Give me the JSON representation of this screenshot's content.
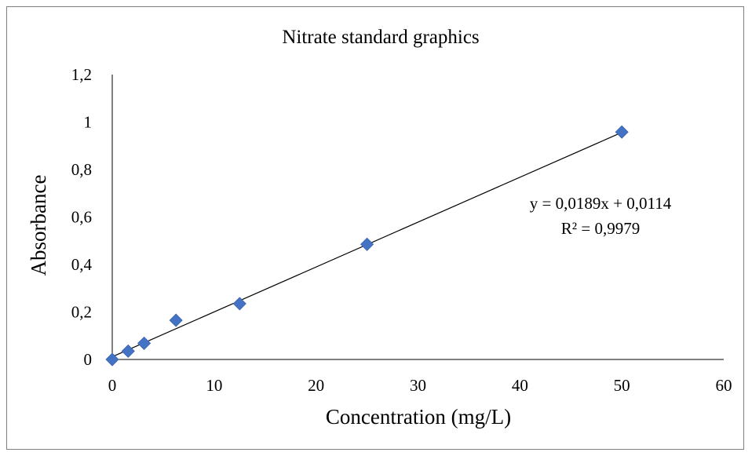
{
  "chart_data": {
    "type": "scatter",
    "title": "Nitrate standard graphics",
    "xlabel": "Concentration (mg/L)",
    "ylabel": "Absorbance",
    "xlim": [
      0,
      60
    ],
    "ylim": [
      0,
      1.2
    ],
    "x_ticks": [
      "0",
      "10",
      "20",
      "30",
      "40",
      "50",
      "60"
    ],
    "y_ticks": [
      "0",
      "0,2",
      "0,4",
      "0,6",
      "0,8",
      "1",
      "1,2"
    ],
    "grid": false,
    "legend": "none",
    "marker_color": "#4472c4",
    "series": [
      {
        "x": [
          0,
          1.5625,
          3.125,
          6.25,
          12.5,
          25,
          50
        ],
        "y": [
          0,
          0.035,
          0.068,
          0.165,
          0.235,
          0.485,
          0.958
        ]
      }
    ],
    "trendline": {
      "slope": 0.0189,
      "intercept": 0.0114,
      "equation": "y = 0,0189x + 0,0114",
      "r_squared": "R² = 0,9979"
    }
  }
}
